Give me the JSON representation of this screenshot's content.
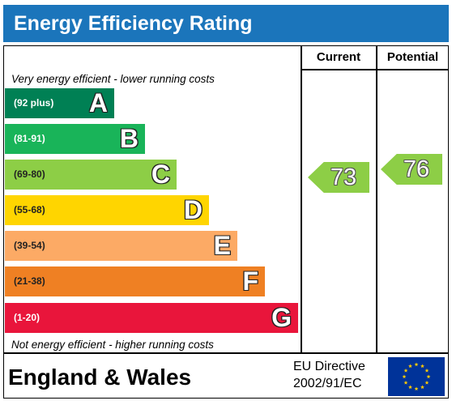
{
  "title": "Energy Efficiency Rating",
  "columns": {
    "current": "Current",
    "potential": "Potential"
  },
  "notes": {
    "top": "Very energy efficient - lower running costs",
    "bottom": "Not energy efficient - higher running costs"
  },
  "bands": [
    {
      "range": "(92 plus)",
      "letter": "A",
      "color": "#008054"
    },
    {
      "range": "(81-91)",
      "letter": "B",
      "color": "#19b459"
    },
    {
      "range": "(69-80)",
      "letter": "C",
      "color": "#8dce46"
    },
    {
      "range": "(55-68)",
      "letter": "D",
      "color": "#ffd500"
    },
    {
      "range": "(39-54)",
      "letter": "E",
      "color": "#fcaa65"
    },
    {
      "range": "(21-38)",
      "letter": "F",
      "color": "#ef8023"
    },
    {
      "range": "(1-20)",
      "letter": "G",
      "color": "#e9153b"
    }
  ],
  "ratings": {
    "current": {
      "value": "73",
      "band": "C",
      "color": "#8dce46"
    },
    "potential": {
      "value": "76",
      "band": "C",
      "color": "#8dce46"
    }
  },
  "footer": {
    "country": "England & Wales",
    "directive_line1": "EU Directive",
    "directive_line2": "2002/91/EC"
  },
  "icons": {
    "eu_flag": "eu-flag-icon"
  }
}
